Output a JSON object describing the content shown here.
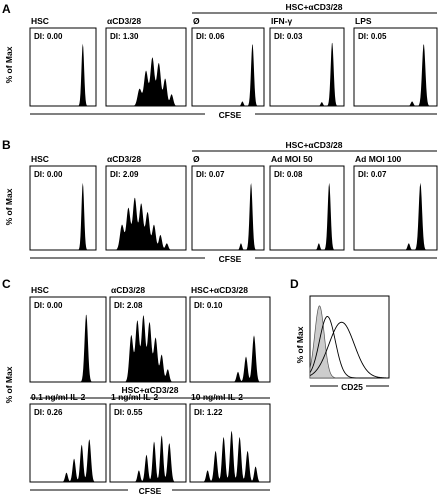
{
  "panels": [
    {
      "label": "A",
      "group_label": "HSC+αCD3/28",
      "x_label": "CFSE",
      "y_label": "% of Max",
      "histograms": [
        {
          "condition": "HSC",
          "di": "DI: 0.00",
          "peaks": [
            {
              "pos": 0.8,
              "h": 0.8,
              "w": 0.02
            }
          ]
        },
        {
          "condition": "αCD3/28",
          "di": "DI: 1.30",
          "peaks": [
            {
              "pos": 0.42,
              "h": 0.22,
              "w": 0.025
            },
            {
              "pos": 0.5,
              "h": 0.45,
              "w": 0.025
            },
            {
              "pos": 0.58,
              "h": 0.62,
              "w": 0.025
            },
            {
              "pos": 0.66,
              "h": 0.55,
              "w": 0.025
            },
            {
              "pos": 0.74,
              "h": 0.35,
              "w": 0.022
            },
            {
              "pos": 0.82,
              "h": 0.15,
              "w": 0.02
            }
          ]
        },
        {
          "condition": "Ø",
          "di": "DI: 0.06",
          "peaks": [
            {
              "pos": 0.7,
              "h": 0.06,
              "w": 0.015
            },
            {
              "pos": 0.84,
              "h": 0.8,
              "w": 0.02
            }
          ]
        },
        {
          "condition": "IFN-γ",
          "di": "DI: 0.03",
          "peaks": [
            {
              "pos": 0.7,
              "h": 0.05,
              "w": 0.015
            },
            {
              "pos": 0.84,
              "h": 0.82,
              "w": 0.02
            }
          ]
        },
        {
          "condition": "LPS",
          "di": "DI: 0.05",
          "peaks": [
            {
              "pos": 0.7,
              "h": 0.06,
              "w": 0.015
            },
            {
              "pos": 0.84,
              "h": 0.8,
              "w": 0.02
            }
          ]
        }
      ]
    },
    {
      "label": "B",
      "group_label": "HSC+αCD3/28",
      "x_label": "CFSE",
      "y_label": "% of Max",
      "histograms": [
        {
          "condition": "HSC",
          "di": "DI: 0.00",
          "peaks": [
            {
              "pos": 0.8,
              "h": 0.8,
              "w": 0.02
            }
          ]
        },
        {
          "condition": "αCD3/28",
          "di": "DI: 2.09",
          "peaks": [
            {
              "pos": 0.2,
              "h": 0.3,
              "w": 0.025
            },
            {
              "pos": 0.28,
              "h": 0.5,
              "w": 0.025
            },
            {
              "pos": 0.36,
              "h": 0.62,
              "w": 0.025
            },
            {
              "pos": 0.44,
              "h": 0.55,
              "w": 0.025
            },
            {
              "pos": 0.52,
              "h": 0.45,
              "w": 0.025
            },
            {
              "pos": 0.6,
              "h": 0.3,
              "w": 0.022
            },
            {
              "pos": 0.68,
              "h": 0.18,
              "w": 0.02
            },
            {
              "pos": 0.76,
              "h": 0.08,
              "w": 0.018
            }
          ]
        },
        {
          "condition": "Ø",
          "di": "DI: 0.07",
          "peaks": [
            {
              "pos": 0.68,
              "h": 0.08,
              "w": 0.015
            },
            {
              "pos": 0.82,
              "h": 0.8,
              "w": 0.02
            }
          ]
        },
        {
          "condition": "Ad MOI 50",
          "di": "DI: 0.08",
          "peaks": [
            {
              "pos": 0.66,
              "h": 0.08,
              "w": 0.015
            },
            {
              "pos": 0.8,
              "h": 0.8,
              "w": 0.02
            }
          ]
        },
        {
          "condition": "Ad MOI 100",
          "di": "DI: 0.07",
          "peaks": [
            {
              "pos": 0.66,
              "h": 0.08,
              "w": 0.015
            },
            {
              "pos": 0.8,
              "h": 0.8,
              "w": 0.02
            }
          ]
        }
      ]
    },
    {
      "label": "C",
      "x_label": "CFSE",
      "y_label": "% of Max",
      "top_row": [
        {
          "condition": "HSC",
          "di": "DI: 0.00",
          "peaks": [
            {
              "pos": 0.74,
              "h": 0.8,
              "w": 0.022
            }
          ]
        },
        {
          "condition": "αCD3/28",
          "di": "DI: 2.08",
          "peaks": [
            {
              "pos": 0.28,
              "h": 0.55,
              "w": 0.025
            },
            {
              "pos": 0.36,
              "h": 0.72,
              "w": 0.025
            },
            {
              "pos": 0.44,
              "h": 0.78,
              "w": 0.025
            },
            {
              "pos": 0.52,
              "h": 0.7,
              "w": 0.025
            },
            {
              "pos": 0.6,
              "h": 0.52,
              "w": 0.025
            },
            {
              "pos": 0.68,
              "h": 0.32,
              "w": 0.022
            },
            {
              "pos": 0.76,
              "h": 0.15,
              "w": 0.02
            }
          ]
        },
        {
          "condition": "HSC+αCD3/28",
          "di": "DI: 0.10",
          "peaks": [
            {
              "pos": 0.6,
              "h": 0.12,
              "w": 0.018
            },
            {
              "pos": 0.7,
              "h": 0.3,
              "w": 0.02
            },
            {
              "pos": 0.8,
              "h": 0.55,
              "w": 0.022
            }
          ]
        }
      ],
      "bottom_group_label": "HSC+αCD3/28",
      "bottom_row": [
        {
          "condition": "0.1 ng/ml IL-2",
          "di": "DI: 0.26",
          "peaks": [
            {
              "pos": 0.48,
              "h": 0.12,
              "w": 0.018
            },
            {
              "pos": 0.58,
              "h": 0.3,
              "w": 0.02
            },
            {
              "pos": 0.68,
              "h": 0.48,
              "w": 0.02
            },
            {
              "pos": 0.78,
              "h": 0.55,
              "w": 0.022
            }
          ]
        },
        {
          "condition": "1 ng/ml IL-2",
          "di": "DI: 0.55",
          "peaks": [
            {
              "pos": 0.38,
              "h": 0.15,
              "w": 0.018
            },
            {
              "pos": 0.48,
              "h": 0.35,
              "w": 0.02
            },
            {
              "pos": 0.58,
              "h": 0.52,
              "w": 0.02
            },
            {
              "pos": 0.68,
              "h": 0.6,
              "w": 0.02
            },
            {
              "pos": 0.78,
              "h": 0.5,
              "w": 0.022
            }
          ]
        },
        {
          "condition": "10 ng/ml IL-2",
          "di": "DI: 1.22",
          "peaks": [
            {
              "pos": 0.22,
              "h": 0.15,
              "w": 0.018
            },
            {
              "pos": 0.32,
              "h": 0.4,
              "w": 0.02
            },
            {
              "pos": 0.42,
              "h": 0.58,
              "w": 0.02
            },
            {
              "pos": 0.52,
              "h": 0.66,
              "w": 0.02
            },
            {
              "pos": 0.62,
              "h": 0.58,
              "w": 0.02
            },
            {
              "pos": 0.72,
              "h": 0.4,
              "w": 0.02
            },
            {
              "pos": 0.82,
              "h": 0.2,
              "w": 0.018
            }
          ]
        }
      ]
    },
    {
      "label": "D",
      "x_label": "CD25",
      "y_label": "% of Max",
      "overlay": {
        "filled": {
          "color": "#cccccc",
          "peaks": [
            {
              "pos": 0.12,
              "h": 0.88,
              "w": 0.06
            }
          ]
        },
        "lines": [
          {
            "color": "#000000",
            "peaks": [
              {
                "pos": 0.22,
                "h": 0.75,
                "w": 0.1
              }
            ]
          },
          {
            "color": "#000000",
            "peaks": [
              {
                "pos": 0.4,
                "h": 0.68,
                "w": 0.16
              }
            ]
          }
        ]
      }
    }
  ]
}
